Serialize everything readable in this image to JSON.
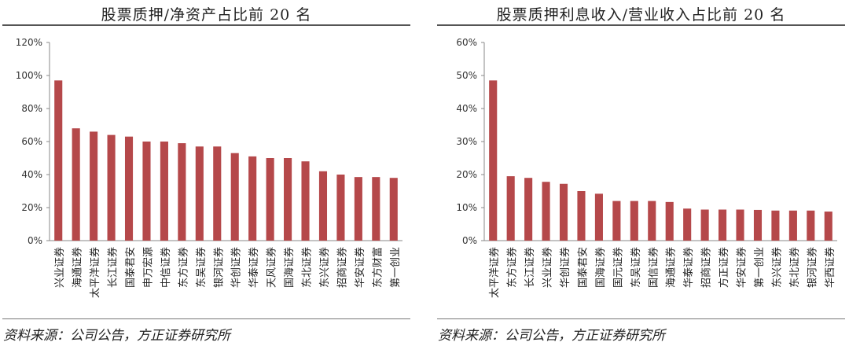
{
  "charts": {
    "left": {
      "source": "资料来源：公司公告，方正证券研究所"
    },
    "right": {
      "source": "资料来源：公司公告，方正证券研究所"
    }
  },
  "chart_data": [
    {
      "type": "bar",
      "title": "股票质押/净资产占比前 20 名",
      "xlabel": "",
      "ylabel": "",
      "ylim": [
        0,
        1.2
      ],
      "yticks": [
        0,
        0.2,
        0.4,
        0.6,
        0.8,
        1.0,
        1.2
      ],
      "ytick_labels": [
        "0%",
        "20%",
        "40%",
        "60%",
        "80%",
        "100%",
        "120%"
      ],
      "grid": false,
      "color": "#b5484a",
      "categories": [
        "兴业证券",
        "海通证券",
        "太平洋证券",
        "长江证券",
        "国泰君安",
        "申万宏源",
        "中信证券",
        "东方证券",
        "东吴证券",
        "银河证券",
        "华创证券",
        "华泰证券",
        "天风证券",
        "国海证券",
        "东北证券",
        "东兴证券",
        "招商证券",
        "华安证券",
        "东方财富",
        "第一创业"
      ],
      "values": [
        0.97,
        0.68,
        0.66,
        0.64,
        0.63,
        0.6,
        0.6,
        0.59,
        0.57,
        0.57,
        0.53,
        0.51,
        0.5,
        0.5,
        0.48,
        0.42,
        0.4,
        0.385,
        0.385,
        0.38
      ]
    },
    {
      "type": "bar",
      "title": "股票质押利息收入/营业收入占比前 20 名",
      "xlabel": "",
      "ylabel": "",
      "ylim": [
        0,
        0.6
      ],
      "yticks": [
        0,
        0.1,
        0.2,
        0.3,
        0.4,
        0.5,
        0.6
      ],
      "ytick_labels": [
        "0%",
        "10%",
        "20%",
        "30%",
        "40%",
        "50%",
        "60%"
      ],
      "grid": false,
      "color": "#b5484a",
      "categories": [
        "太平洋证券",
        "东方证券",
        "长江证券",
        "兴业证券",
        "华创证券",
        "国泰君安",
        "国海证券",
        "国元证券",
        "东吴证券",
        "国信证券",
        "海通证券",
        "华泰证券",
        "招商证券",
        "方正证券",
        "华安证券",
        "第一创业",
        "东兴证券",
        "东北证券",
        "银河证券",
        "华西证券"
      ],
      "values": [
        0.485,
        0.195,
        0.19,
        0.178,
        0.172,
        0.15,
        0.142,
        0.12,
        0.12,
        0.12,
        0.117,
        0.097,
        0.094,
        0.094,
        0.094,
        0.093,
        0.091,
        0.091,
        0.091,
        0.088
      ]
    }
  ]
}
